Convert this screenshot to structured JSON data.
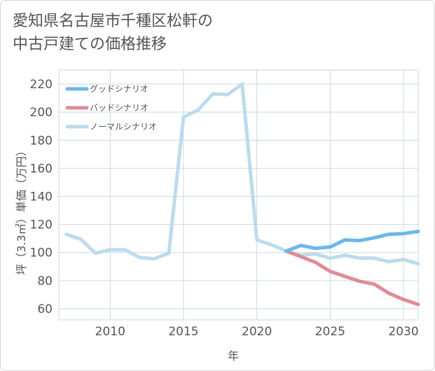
{
  "chart_data": {
    "type": "line",
    "title_lines": [
      "愛知県名古屋市千種区松軒の",
      "中古戸建ての価格推移"
    ],
    "xlabel": "年",
    "ylabel": "坪（3.3㎡）単価（万円）",
    "xlim": [
      2006.5,
      2031
    ],
    "ylim": [
      52,
      230
    ],
    "x_ticks": [
      2010,
      2015,
      2020,
      2025,
      2030
    ],
    "y_ticks": [
      60,
      80,
      100,
      120,
      140,
      160,
      180,
      200,
      220
    ],
    "legend_position": "top-left",
    "series": [
      {
        "name": "グッドシナリオ",
        "color": "#6cb6ec",
        "x": [
          2022,
          2023,
          2024,
          2025,
          2026,
          2027,
          2028,
          2029,
          2030,
          2031
        ],
        "values": [
          101,
          105,
          103,
          104,
          109,
          108.5,
          110.5,
          113,
          113.5,
          115
        ]
      },
      {
        "name": "バッドシナリオ",
        "color": "#df8c96",
        "x": [
          2022,
          2023,
          2024,
          2025,
          2026,
          2027,
          2028,
          2029,
          2030,
          2031
        ],
        "values": [
          101,
          97,
          93,
          86.5,
          83,
          79.5,
          77.5,
          71,
          66.5,
          63
        ]
      },
      {
        "name": "ノーマルシナリオ",
        "color": "#bcdceb",
        "x": [
          2007,
          2008,
          2009,
          2010,
          2011,
          2012,
          2013,
          2014,
          2015,
          2016,
          2017,
          2018,
          2019,
          2020,
          2021,
          2022,
          2023,
          2024,
          2025,
          2026,
          2027,
          2028,
          2029,
          2030,
          2031
        ],
        "values": [
          113,
          109.5,
          99.5,
          102,
          102,
          96.5,
          95.5,
          99.5,
          196.5,
          201.5,
          213,
          212.5,
          220,
          109,
          105.5,
          101,
          98,
          99,
          96,
          98,
          96,
          96,
          93.5,
          95,
          92
        ]
      }
    ]
  }
}
